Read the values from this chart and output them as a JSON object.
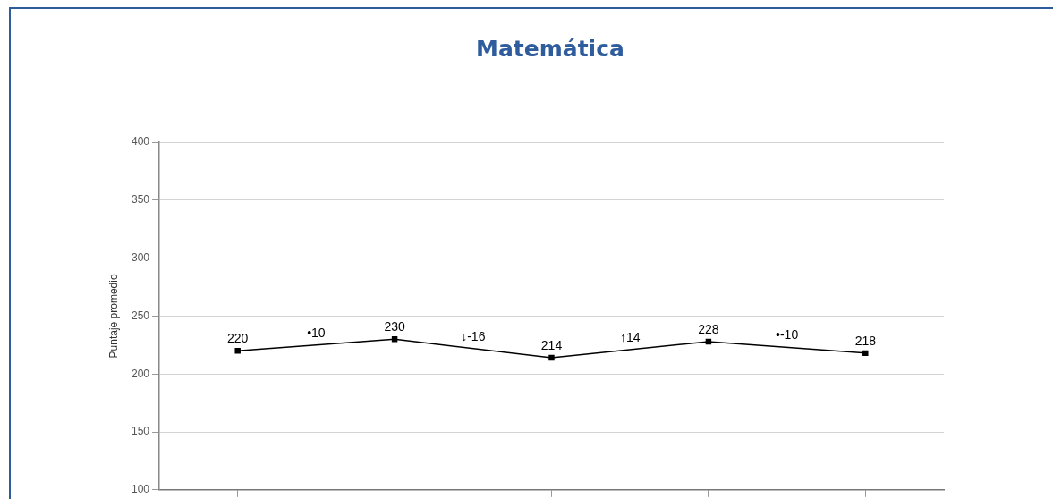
{
  "chart_data": {
    "type": "line",
    "title": "Matemática",
    "ylabel": "Puntaje promedio",
    "categories": [
      null,
      null,
      null,
      null,
      null
    ],
    "series": [
      {
        "color": "#000000",
        "values": [
          220,
          230,
          214,
          228,
          218
        ]
      }
    ],
    "ylim": [
      100,
      400
    ],
    "yticks": [
      100,
      150,
      200,
      250,
      300,
      350,
      400
    ],
    "grid": "y",
    "legend": false,
    "marker": "square",
    "line_style": "solid",
    "data_labels": true,
    "annotations": [
      "•10",
      "↓-16",
      "↑14",
      "•-10"
    ]
  }
}
